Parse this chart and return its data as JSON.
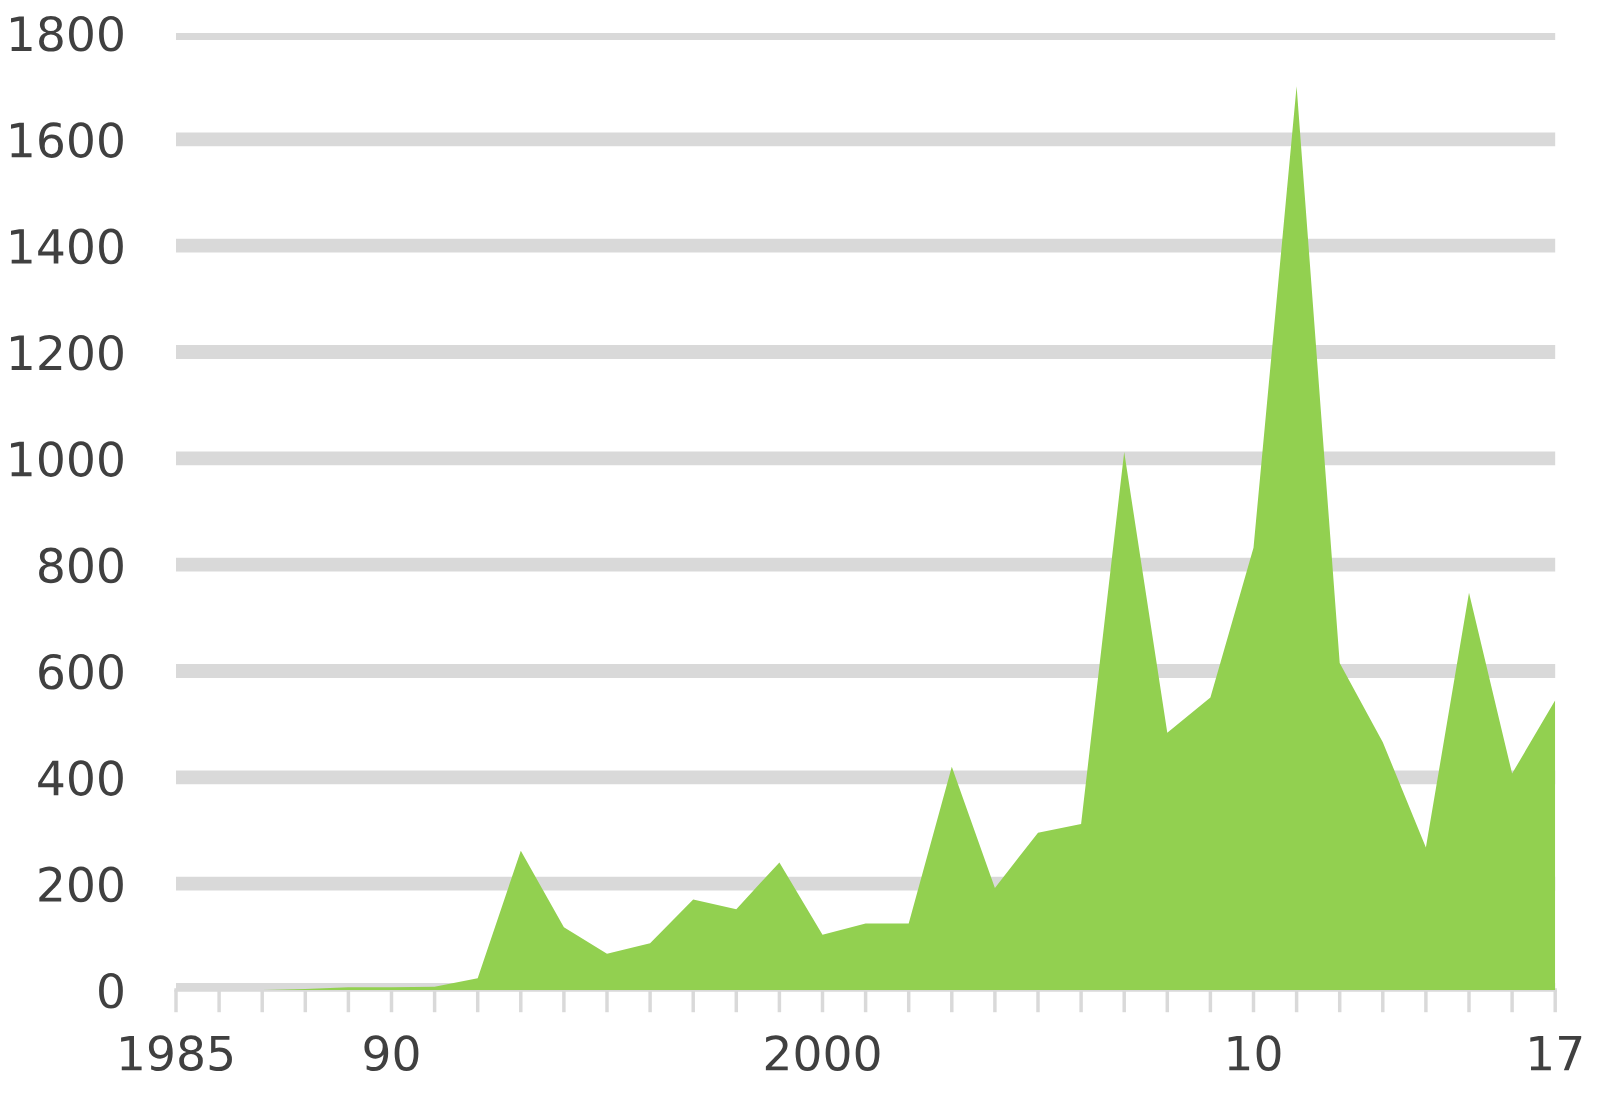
{
  "chart_data": {
    "type": "area",
    "x": [
      1985,
      1986,
      1987,
      1988,
      1989,
      1990,
      1991,
      1992,
      1993,
      1994,
      1995,
      1996,
      1997,
      1998,
      1999,
      2000,
      2001,
      2002,
      2003,
      2004,
      2005,
      2006,
      2007,
      2008,
      2009,
      2010,
      2011,
      2012,
      2013,
      2014,
      2015,
      2016,
      2017
    ],
    "series": [
      {
        "color": "#92d050",
        "values": [
          0,
          0,
          0,
          2,
          5,
          5,
          6,
          22,
          262,
          118,
          68,
          88,
          170,
          152,
          240,
          104,
          125,
          125,
          420,
          192,
          296,
          312,
          1012,
          484,
          550,
          832,
          1700,
          615,
          466,
          268,
          747,
          407,
          545
        ]
      }
    ],
    "xlim": [
      1985,
      2017
    ],
    "xticks": [
      1985,
      {
        "value": 1986,
        "label": null
      },
      {
        "value": 1987,
        "label": null
      },
      {
        "value": 1988,
        "label": null
      },
      {
        "value": 1989,
        "label": null
      },
      {
        "value": 1990,
        "label": "90"
      },
      {
        "value": 1991,
        "label": null
      },
      {
        "value": 1992,
        "label": null
      },
      {
        "value": 1993,
        "label": null
      },
      {
        "value": 1994,
        "label": null
      },
      {
        "value": 1995,
        "label": null
      },
      {
        "value": 1996,
        "label": null
      },
      {
        "value": 1997,
        "label": null
      },
      {
        "value": 1998,
        "label": null
      },
      {
        "value": 1999,
        "label": null
      },
      2000,
      {
        "value": 2001,
        "label": null
      },
      {
        "value": 2002,
        "label": null
      },
      {
        "value": 2003,
        "label": null
      },
      {
        "value": 2004,
        "label": null
      },
      {
        "value": 2005,
        "label": null
      },
      {
        "value": 2006,
        "label": null
      },
      {
        "value": 2007,
        "label": null
      },
      {
        "value": 2008,
        "label": null
      },
      {
        "value": 2009,
        "label": null
      },
      {
        "value": 2010,
        "label": "10"
      },
      {
        "value": 2011,
        "label": null
      },
      {
        "value": 2012,
        "label": null
      },
      {
        "value": 2013,
        "label": null
      },
      {
        "value": 2014,
        "label": null
      },
      {
        "value": 2015,
        "label": null
      },
      {
        "value": 2016,
        "label": null
      },
      {
        "value": 2017,
        "label": "17"
      }
    ],
    "ylim": [
      0,
      1800
    ],
    "yticks": [
      0,
      200,
      400,
      600,
      800,
      1000,
      1200,
      1400,
      1600,
      1800
    ],
    "grid": "y",
    "legend": false
  }
}
